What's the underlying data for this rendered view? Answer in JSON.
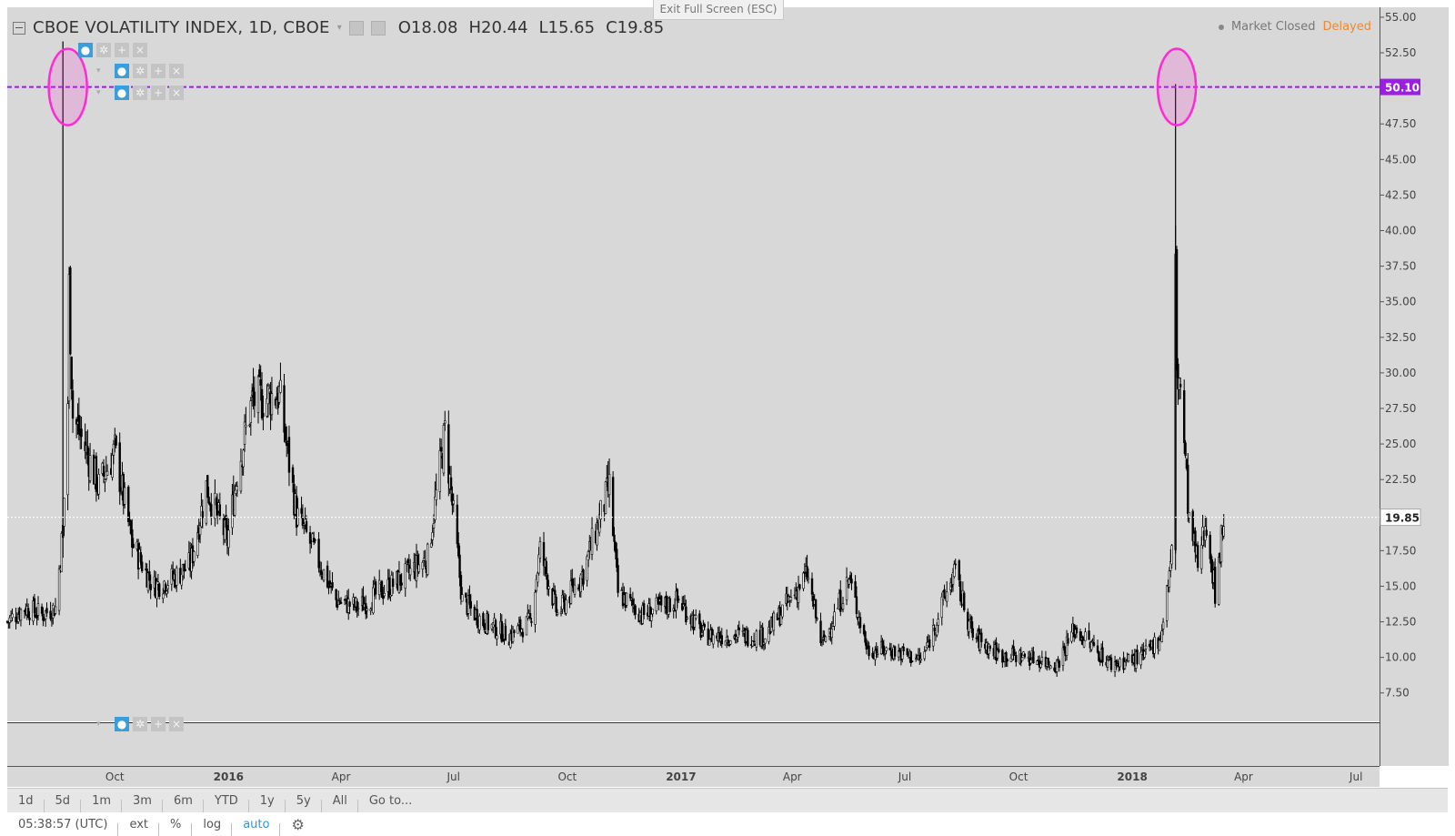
{
  "app": {
    "exit_fullscreen": "Exit Full Screen (ESC)"
  },
  "legend": {
    "symbol_title": "CBOE VOLATILITY INDEX, 1D, CBOE",
    "open": "O18.08",
    "high": "H20.44",
    "low": "L15.65",
    "close": "C19.85"
  },
  "status": {
    "market": "Market Closed",
    "delayed": "Delayed"
  },
  "colors": {
    "background": "#d8d8d8",
    "candle_down": "#000000",
    "candle_up": "#ffffff",
    "hline": "#9b1fe0",
    "highlight": "#ff2ad4",
    "delayed": "#f08a2c",
    "accent": "#2a97d8"
  },
  "price_labels": {
    "hline": "50.10",
    "last": "19.85"
  },
  "chart_data": {
    "type": "candlestick",
    "title": "CBOE VOLATILITY INDEX, 1D, CBOE",
    "ylim": [
      5.5,
      55.7
    ],
    "y_ticks": [
      "55.00",
      "52.50",
      "50.00",
      "47.50",
      "45.00",
      "42.50",
      "40.00",
      "37.50",
      "35.00",
      "32.50",
      "30.00",
      "27.50",
      "25.00",
      "22.50",
      "20.00",
      "17.50",
      "15.00",
      "12.50",
      "10.00",
      "7.50"
    ],
    "x_range": [
      "2015-07-06",
      "2018-07-20"
    ],
    "x_ticks": [
      {
        "date": "2015-10-01",
        "label": "Oct",
        "bold": false
      },
      {
        "date": "2016-01-01",
        "label": "2016",
        "bold": true
      },
      {
        "date": "2016-04-01",
        "label": "Apr",
        "bold": false
      },
      {
        "date": "2016-07-01",
        "label": "Jul",
        "bold": false
      },
      {
        "date": "2016-10-01",
        "label": "Oct",
        "bold": false
      },
      {
        "date": "2017-01-01",
        "label": "2017",
        "bold": true
      },
      {
        "date": "2017-04-01",
        "label": "Apr",
        "bold": false
      },
      {
        "date": "2017-07-01",
        "label": "Jul",
        "bold": false
      },
      {
        "date": "2017-10-01",
        "label": "Oct",
        "bold": false
      },
      {
        "date": "2018-01-01",
        "label": "2018",
        "bold": true
      },
      {
        "date": "2018-04-01",
        "label": "Apr",
        "bold": false
      },
      {
        "date": "2018-07-01",
        "label": "Jul",
        "bold": false
      }
    ],
    "close_series": [
      {
        "date": "2015-07-06",
        "close": 12.5
      },
      {
        "date": "2015-07-20",
        "close": 13.5
      },
      {
        "date": "2015-08-03",
        "close": 13.0
      },
      {
        "date": "2015-08-14",
        "close": 13.5
      },
      {
        "date": "2015-08-20",
        "close": 19.0
      },
      {
        "date": "2015-08-24",
        "close": 28.0
      },
      {
        "date": "2015-08-25",
        "close": 36.0
      },
      {
        "date": "2015-08-28",
        "close": 27.0
      },
      {
        "date": "2015-09-10",
        "close": 24.0
      },
      {
        "date": "2015-09-18",
        "close": 22.0
      },
      {
        "date": "2015-10-01",
        "close": 24.5
      },
      {
        "date": "2015-10-15",
        "close": 18.0
      },
      {
        "date": "2015-11-01",
        "close": 15.0
      },
      {
        "date": "2015-11-16",
        "close": 15.5
      },
      {
        "date": "2015-12-01",
        "close": 16.5
      },
      {
        "date": "2015-12-14",
        "close": 22.0
      },
      {
        "date": "2015-12-31",
        "close": 18.2
      },
      {
        "date": "2016-01-08",
        "close": 23.0
      },
      {
        "date": "2016-01-20",
        "close": 28.0
      },
      {
        "date": "2016-02-11",
        "close": 28.5
      },
      {
        "date": "2016-02-25",
        "close": 20.0
      },
      {
        "date": "2016-03-10",
        "close": 17.5
      },
      {
        "date": "2016-03-28",
        "close": 14.0
      },
      {
        "date": "2016-04-15",
        "close": 13.5
      },
      {
        "date": "2016-05-01",
        "close": 14.5
      },
      {
        "date": "2016-05-20",
        "close": 15.5
      },
      {
        "date": "2016-06-10",
        "close": 17.0
      },
      {
        "date": "2016-06-24",
        "close": 25.8
      },
      {
        "date": "2016-07-08",
        "close": 14.0
      },
      {
        "date": "2016-07-25",
        "close": 12.5
      },
      {
        "date": "2016-08-15",
        "close": 11.5
      },
      {
        "date": "2016-09-01",
        "close": 12.5
      },
      {
        "date": "2016-09-09",
        "close": 17.5
      },
      {
        "date": "2016-09-23",
        "close": 13.0
      },
      {
        "date": "2016-10-14",
        "close": 16.0
      },
      {
        "date": "2016-11-04",
        "close": 22.0
      },
      {
        "date": "2016-11-11",
        "close": 14.5
      },
      {
        "date": "2016-12-01",
        "close": 13.0
      },
      {
        "date": "2016-12-30",
        "close": 14.0
      },
      {
        "date": "2017-01-20",
        "close": 11.5
      },
      {
        "date": "2017-02-15",
        "close": 11.5
      },
      {
        "date": "2017-03-10",
        "close": 11.5
      },
      {
        "date": "2017-04-13",
        "close": 15.8
      },
      {
        "date": "2017-04-25",
        "close": 10.8
      },
      {
        "date": "2017-05-17",
        "close": 15.5
      },
      {
        "date": "2017-06-01",
        "close": 10.5
      },
      {
        "date": "2017-06-20",
        "close": 10.5
      },
      {
        "date": "2017-07-15",
        "close": 9.8
      },
      {
        "date": "2017-08-10",
        "close": 16.0
      },
      {
        "date": "2017-08-25",
        "close": 11.5
      },
      {
        "date": "2017-09-15",
        "close": 10.2
      },
      {
        "date": "2017-10-10",
        "close": 10.0
      },
      {
        "date": "2017-11-01",
        "close": 9.5
      },
      {
        "date": "2017-11-15",
        "close": 12.0
      },
      {
        "date": "2017-12-15",
        "close": 9.5
      },
      {
        "date": "2018-01-10",
        "close": 10.0
      },
      {
        "date": "2018-01-24",
        "close": 11.5
      },
      {
        "date": "2018-02-02",
        "close": 17.3
      },
      {
        "date": "2018-02-05",
        "close": 37.3
      },
      {
        "date": "2018-02-06",
        "close": 29.9
      },
      {
        "date": "2018-02-09",
        "close": 29.1
      },
      {
        "date": "2018-02-16",
        "close": 19.5
      },
      {
        "date": "2018-02-23",
        "close": 16.5
      },
      {
        "date": "2018-03-02",
        "close": 19.6
      },
      {
        "date": "2018-03-09",
        "close": 14.6
      },
      {
        "date": "2018-03-16",
        "close": 19.85
      }
    ]
  },
  "annotations": {
    "horizontal_line_value": 50.1,
    "circles": [
      {
        "date": "2015-08-24",
        "value": 50.1
      },
      {
        "date": "2018-02-06",
        "value": 50.1
      }
    ]
  },
  "bottom_bar": {
    "ranges": [
      "1d",
      "5d",
      "1m",
      "3m",
      "6m",
      "YTD",
      "1y",
      "5y",
      "All"
    ],
    "goto": "Go to...",
    "time": "05:38:57 (UTC)",
    "ext": "ext",
    "percent": "%",
    "log": "log",
    "auto": "auto",
    "gear_icon": "gear-icon"
  }
}
